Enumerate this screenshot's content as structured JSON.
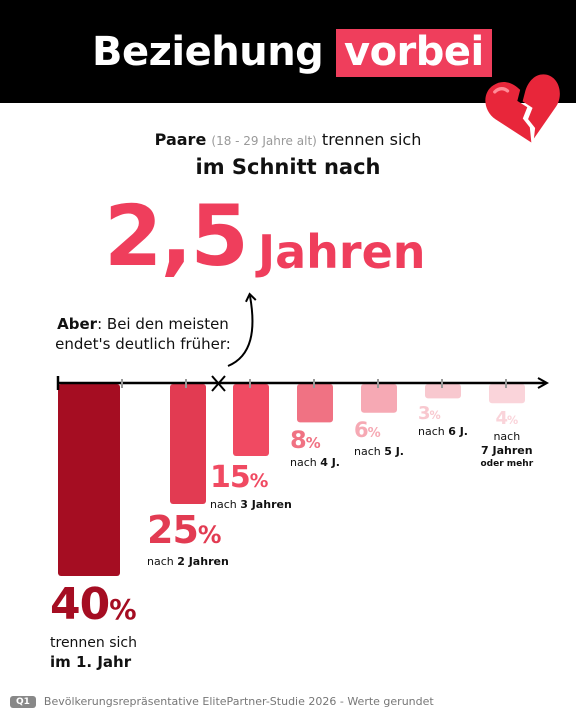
{
  "header": {
    "title_main": "Beziehung",
    "title_accent": "vorbei"
  },
  "intro": {
    "line1_bold": "Paare",
    "line1_paren": "(18 - 29 Jahre alt)",
    "line1_rest": "trennen sich",
    "line2": "im Schnitt nach",
    "big_number": "2,5",
    "big_unit": "Jahren"
  },
  "note": {
    "bold": "Aber",
    "text": ": Bei den meisten endet's deutlich früher:"
  },
  "colors": {
    "accent": "#ef3e5c",
    "bar_1": "#a50d22",
    "bar_2": "#e23b52",
    "bar_3": "#f04a62",
    "bar_4": "#f07283",
    "bar_5": "#f6a9b4",
    "bar_6": "#f8c8cf",
    "bar_7": "#fad4da"
  },
  "chart_data": {
    "type": "bar",
    "title": "",
    "xlabel": "",
    "ylabel": "",
    "unit": "%",
    "average_marker": "2,5 Jahren",
    "categories": [
      "im 1. Jahr",
      "nach 2 Jahren",
      "nach 3 Jahren",
      "nach 4 J.",
      "nach 5 J.",
      "nach 6 J.",
      "nach 7 Jahren oder mehr"
    ],
    "values": [
      40,
      25,
      15,
      8,
      6,
      3,
      4
    ],
    "labels": [
      {
        "pct": "40",
        "line1": "trennen sich",
        "line1_bold": "",
        "line2_bold": "im 1. Jahr"
      },
      {
        "pct": "25",
        "line1": "nach ",
        "line1_bold": "2 Jahren",
        "line2_bold": ""
      },
      {
        "pct": "15",
        "line1": "nach ",
        "line1_bold": "3 Jahren",
        "line2_bold": ""
      },
      {
        "pct": "8",
        "line1": "nach ",
        "line1_bold": "4 J.",
        "line2_bold": ""
      },
      {
        "pct": "6",
        "line1": "nach ",
        "line1_bold": "5 J.",
        "line2_bold": ""
      },
      {
        "pct": "3",
        "line1": "nach ",
        "line1_bold": "6 J.",
        "line2_bold": ""
      },
      {
        "pct": "4",
        "line1": "nach",
        "line1_bold": "",
        "line2_bold": "7 Jahren",
        "line3_bold": "oder mehr"
      }
    ]
  },
  "footer": {
    "badge": "Q1",
    "source": "Bevölkerungsrepräsentative ElitePartner-Studie 2026 - Werte gerundet"
  }
}
